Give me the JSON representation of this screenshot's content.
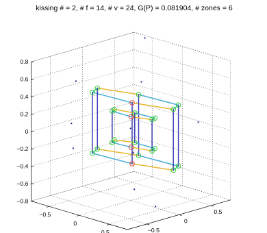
{
  "chart_data": {
    "type": "scatter",
    "title": "kissing # = 2, # f = 14, # v = 24, G(P) = 0.081904, # zones = 6",
    "xlabel": "",
    "ylabel": "",
    "zlabel": "",
    "axes": {
      "x": {
        "ticks": [
          -0.5,
          0,
          0.5
        ],
        "tick_labels": [
          "−0.5",
          "0",
          "0.5"
        ]
      },
      "y": {
        "ticks": [
          -0.5,
          0,
          0.5
        ],
        "tick_labels": [
          "−0.5",
          "0",
          "0.5"
        ]
      },
      "z": {
        "ticks": [
          -0.8,
          -0.6,
          -0.4,
          -0.2,
          0,
          0.2,
          0.4,
          0.6,
          0.8
        ],
        "tick_labels": [
          "−0.8",
          "−0.6",
          "−0.4",
          "−0.2",
          "0",
          "0.2",
          "0.4",
          "0.6",
          "0.8"
        ]
      }
    },
    "grid": true,
    "colors": {
      "zone_a": "#3c3cb4",
      "zone_b": "#4aaed8",
      "zone_c": "#e8b830",
      "zone_d": "#3ecaa6",
      "vertex_marker": "#2ecc2e",
      "vertex_marker_alt": "#e04040",
      "points": "#1c1c8c"
    },
    "series": [
      {
        "type": "polyhedron",
        "vertices": [
          [
            0.6,
            0.1,
            0.35
          ],
          [
            0.45,
            -0.4,
            0.5
          ],
          [
            -0.05,
            -0.55,
            0.55
          ],
          [
            -0.5,
            -0.05,
            0.4
          ],
          [
            -0.35,
            0.45,
            0.25
          ],
          [
            0.15,
            0.6,
            0.2
          ],
          [
            0.6,
            0.1,
            -0.35
          ],
          [
            0.45,
            -0.4,
            -0.2
          ],
          [
            -0.05,
            -0.55,
            -0.15
          ],
          [
            -0.5,
            -0.05,
            -0.3
          ],
          [
            -0.35,
            0.45,
            -0.45
          ],
          [
            0.15,
            0.6,
            -0.5
          ],
          [
            0.3,
            0.05,
            0.18
          ],
          [
            0.22,
            -0.2,
            0.25
          ],
          [
            -0.02,
            -0.27,
            0.28
          ],
          [
            -0.25,
            -0.02,
            0.2
          ],
          [
            -0.18,
            0.23,
            0.12
          ],
          [
            0.08,
            0.3,
            0.1
          ],
          [
            0.3,
            0.05,
            -0.18
          ],
          [
            0.22,
            -0.2,
            -0.1
          ],
          [
            -0.02,
            -0.27,
            -0.08
          ],
          [
            -0.25,
            -0.02,
            -0.15
          ],
          [
            -0.18,
            0.23,
            -0.22
          ],
          [
            0.08,
            0.3,
            -0.25
          ]
        ],
        "edges": [
          [
            0,
            1,
            "zone_c"
          ],
          [
            1,
            2,
            "zone_b"
          ],
          [
            2,
            3,
            "zone_d"
          ],
          [
            3,
            4,
            "zone_c"
          ],
          [
            4,
            5,
            "zone_b"
          ],
          [
            5,
            0,
            "zone_d"
          ],
          [
            6,
            7,
            "zone_c"
          ],
          [
            7,
            8,
            "zone_b"
          ],
          [
            8,
            9,
            "zone_d"
          ],
          [
            9,
            10,
            "zone_c"
          ],
          [
            10,
            11,
            "zone_b"
          ],
          [
            11,
            6,
            "zone_d"
          ],
          [
            0,
            6,
            "zone_a"
          ],
          [
            1,
            7,
            "zone_a"
          ],
          [
            2,
            8,
            "zone_a"
          ],
          [
            3,
            9,
            "zone_a"
          ],
          [
            4,
            10,
            "zone_a"
          ],
          [
            5,
            11,
            "zone_a"
          ],
          [
            12,
            13,
            "zone_c"
          ],
          [
            13,
            14,
            "zone_b"
          ],
          [
            14,
            15,
            "zone_d"
          ],
          [
            15,
            16,
            "zone_c"
          ],
          [
            16,
            17,
            "zone_b"
          ],
          [
            17,
            12,
            "zone_d"
          ],
          [
            18,
            19,
            "zone_c"
          ],
          [
            19,
            20,
            "zone_b"
          ],
          [
            20,
            21,
            "zone_d"
          ],
          [
            21,
            22,
            "zone_c"
          ],
          [
            22,
            23,
            "zone_b"
          ],
          [
            23,
            18,
            "zone_d"
          ],
          [
            12,
            18,
            "zone_a"
          ],
          [
            14,
            20,
            "zone_a"
          ],
          [
            16,
            22,
            "zone_a"
          ]
        ]
      },
      {
        "type": "points",
        "points": [
          [
            -0.3,
            0.5,
            0.9
          ],
          [
            0.55,
            -0.35,
            0.75
          ],
          [
            -0.75,
            -0.15,
            0.45
          ],
          [
            0.8,
            0.3,
            0.2
          ],
          [
            -0.1,
            -0.8,
            -0.05
          ],
          [
            -0.6,
            0.6,
            -0.5
          ],
          [
            0.25,
            0.15,
            -0.85
          ],
          [
            0.7,
            -0.6,
            -0.4
          ],
          [
            0.05,
            -0.05,
            0.05
          ],
          [
            -0.45,
            -0.5,
            0.1
          ]
        ]
      }
    ]
  }
}
